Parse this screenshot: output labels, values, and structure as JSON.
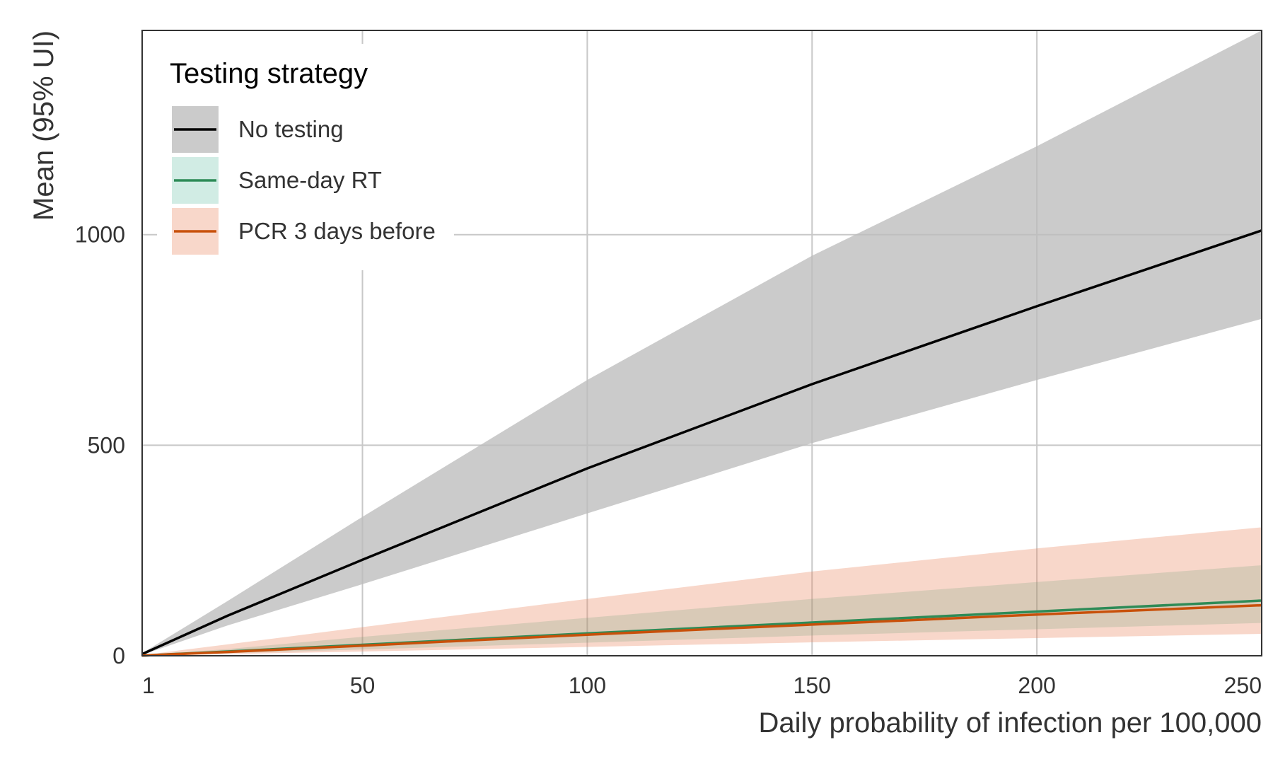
{
  "chart_data": {
    "type": "line",
    "title": "",
    "xlabel": "Daily probability of infection per 100,000",
    "ylabel": "Mean (95% UI)",
    "xlim": [
      1,
      250
    ],
    "ylim": [
      0,
      1485
    ],
    "x_ticks": [
      1,
      50,
      100,
      150,
      200,
      250
    ],
    "x_tick_labels": [
      "1",
      "50",
      "100",
      "150",
      "200",
      "250"
    ],
    "y_ticks": [
      0,
      500,
      1000
    ],
    "y_tick_labels": [
      "0",
      "500",
      "1000"
    ],
    "grid": true,
    "legend": {
      "title": "Testing strategy",
      "position": "top-left"
    },
    "x": [
      1,
      20,
      50,
      100,
      150,
      200,
      250
    ],
    "series": [
      {
        "name": "No testing",
        "color": "#000000",
        "band_color": "#bdbdbd",
        "band_opacity": 0.78,
        "mean": [
          4,
          95,
          228,
          445,
          645,
          830,
          1010
        ],
        "lower": [
          2,
          72,
          170,
          338,
          505,
          655,
          800
        ],
        "upper": [
          6,
          130,
          330,
          655,
          950,
          1210,
          1485
        ]
      },
      {
        "name": "Same-day RT",
        "color": "#2e8b57",
        "band_color": "#1b9e77",
        "band_opacity": 0.2,
        "mean": [
          0.5,
          10,
          26,
          53,
          79,
          105,
          131
        ],
        "lower": [
          0.3,
          6,
          15,
          31,
          48,
          63,
          78
        ],
        "upper": [
          1,
          16,
          45,
          90,
          135,
          175,
          215
        ]
      },
      {
        "name": "PCR 3 days before",
        "color": "#c8500a",
        "band_color": "#e8845a",
        "band_opacity": 0.32,
        "mean": [
          0.5,
          9,
          24,
          50,
          74,
          98,
          120
        ],
        "lower": [
          0.2,
          4,
          10,
          21,
          32,
          42,
          52
        ],
        "upper": [
          1.5,
          27,
          68,
          135,
          200,
          255,
          305
        ]
      }
    ]
  }
}
